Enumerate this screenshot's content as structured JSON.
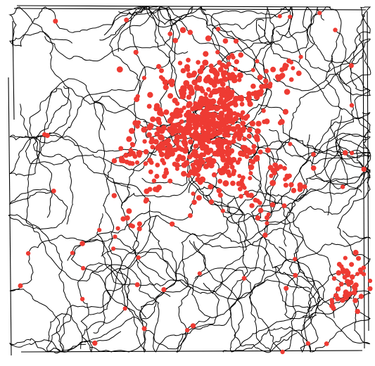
{
  "figure": {
    "type": "trajectory-with-event-markers",
    "background_color": "#ffffff",
    "path_color": "#000000",
    "marker_color": "#ee3b33",
    "enclosure": "square",
    "marker_cluster_location": "upper-center",
    "secondary_cluster_location": "bottom-right"
  }
}
